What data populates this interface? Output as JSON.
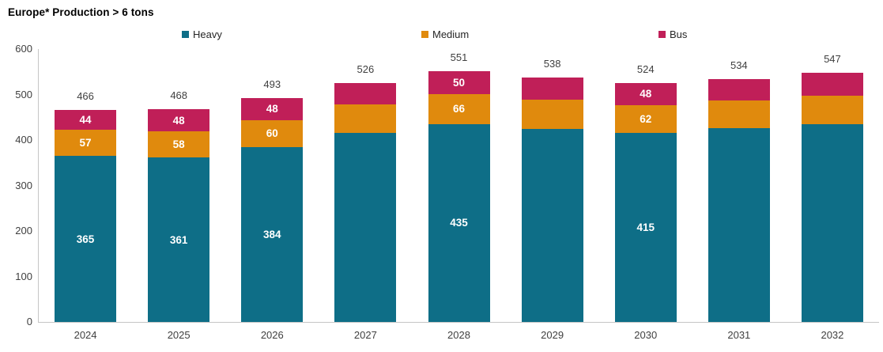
{
  "chart_data": {
    "type": "bar",
    "variant": "stacked",
    "title": "Europe* Production > 6 tons",
    "categories": [
      "2024",
      "2025",
      "2026",
      "2027",
      "2028",
      "2029",
      "2030",
      "2031",
      "2032"
    ],
    "totals": [
      466,
      468,
      493,
      526,
      551,
      538,
      524,
      534,
      547
    ],
    "series": [
      {
        "name": "Heavy",
        "color": "#0e6e87",
        "values": [
          365,
          361,
          384,
          415,
          435,
          425,
          415,
          426,
          434
        ],
        "labels": [
          "365",
          "361",
          "384",
          null,
          "435",
          null,
          "415",
          null,
          null
        ]
      },
      {
        "name": "Medium",
        "color": "#e08a0d",
        "values": [
          57,
          58,
          60,
          63,
          66,
          64,
          62,
          61,
          63
        ],
        "labels": [
          "57",
          "58",
          "60",
          null,
          "66",
          null,
          "62",
          null,
          null
        ]
      },
      {
        "name": "Bus",
        "color": "#c01f58",
        "values": [
          44,
          48,
          48,
          48,
          50,
          49,
          48,
          47,
          50
        ],
        "labels": [
          "44",
          "48",
          "48",
          null,
          "50",
          null,
          "48",
          null,
          null
        ]
      }
    ],
    "y_axis": {
      "min": 0,
      "max": 600,
      "ticks": [
        0,
        100,
        200,
        300,
        400,
        500,
        600
      ]
    },
    "xlabel": "",
    "ylabel": "",
    "grid": false,
    "legend_position": "top",
    "colors": {
      "axis_line": "#c6c6c6",
      "tick_text": "#404040",
      "title_text": "#000000",
      "segment_label_text": "#ffffff"
    }
  }
}
